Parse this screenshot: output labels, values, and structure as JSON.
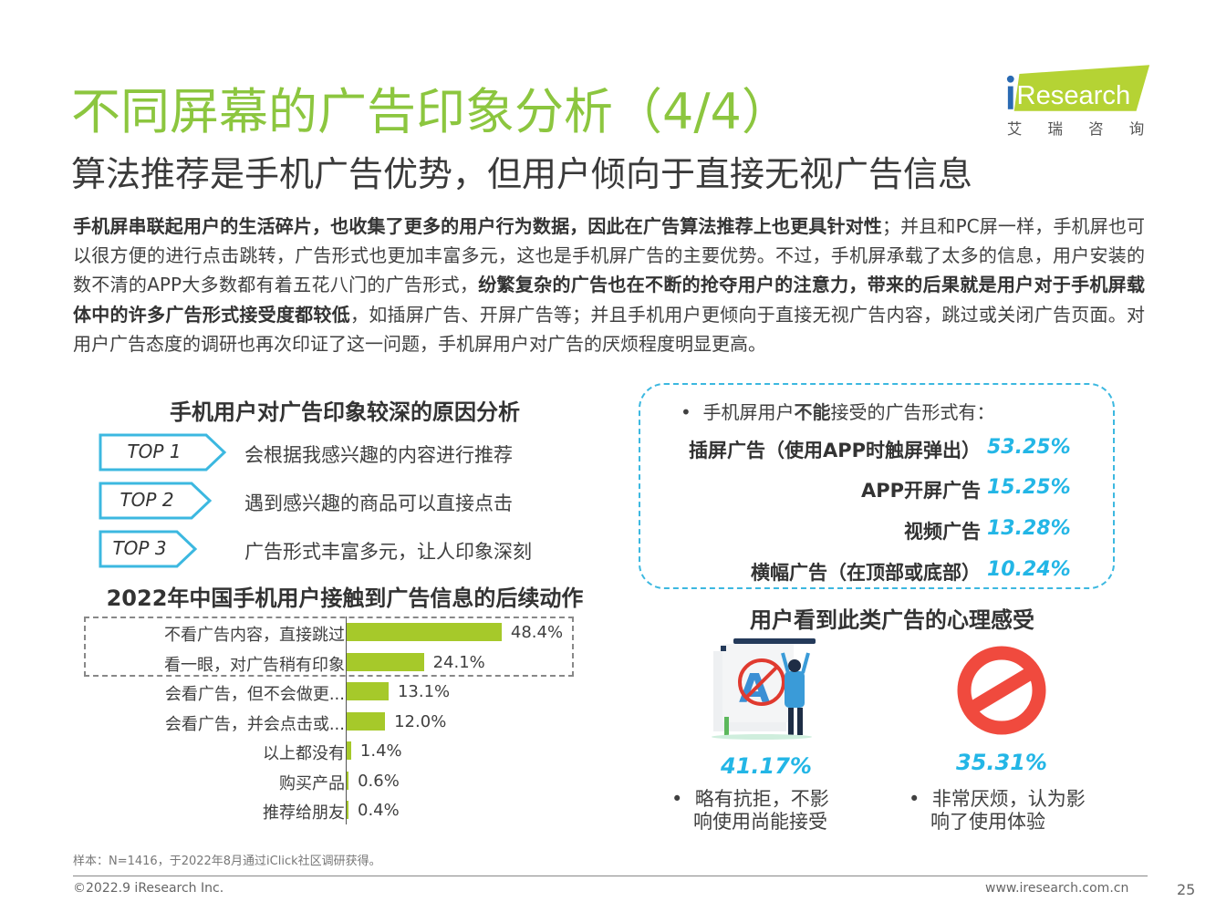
{
  "header": {
    "title": "不同屏幕的广告印象分析（4/4）",
    "subtitle": "算法推荐是手机广告优势，但用户倾向于直接无视广告信息",
    "logo_text": "iResearch",
    "logo_cn": "艾 瑞 咨 询"
  },
  "body": {
    "p1_bold": "手机屏串联起用户的生活碎片，也收集了更多的用户行为数据，因此在广告算法推荐上也更具针对性",
    "p1": "；并且和PC屏一样，手机屏也可以很方便的进行点击跳转，广告形式也更加丰富多元，这也是手机屏广告的主要优势。不过，手机屏承载了太多的信息，用户安装的数不清的APP大多数都有着五花八门的广告形式，",
    "p2_bold": "纷繁复杂的广告也在不断的抢夺用户的注意力，带来的后果就是用户对于手机屏载体中的许多广告形式接受度都较低",
    "p2": "，如插屏广告、开屏广告等；并且手机用户更倾向于直接无视广告内容，跳过或关闭广告页面。对用户广告态度的调研也再次印证了这一问题，手机屏用户对广告的厌烦程度明显更高。"
  },
  "reasons": {
    "title": "手机用户对广告印象较深的原因分析",
    "items": [
      {
        "rank": "TOP 1",
        "text": "会根据我感兴趣的内容进行推荐"
      },
      {
        "rank": "TOP 2",
        "text": "遇到感兴趣的商品可以直接点击"
      },
      {
        "rank": "TOP 3",
        "text": "广告形式丰富多元，让人印象深刻"
      }
    ]
  },
  "unacceptable": {
    "intro_pre": "手机屏用户",
    "intro_bold": "不能",
    "intro_post": "接受的广告形式有：",
    "items": [
      {
        "label": "插屏广告（使用APP时触屏弹出）",
        "value": "53.25%"
      },
      {
        "label": "APP开屏广告",
        "value": "15.25%"
      },
      {
        "label": "视频广告",
        "value": "13.28%"
      },
      {
        "label": "横幅广告（在顶部或底部）",
        "value": "10.24%"
      }
    ]
  },
  "chart_data": {
    "type": "bar",
    "orientation": "horizontal",
    "title": "2022年中国手机用户接触到广告信息的后续动作",
    "categories": [
      "不看广告内容，直接跳过",
      "看一眼，对广告稍有印象",
      "会看广告，但不会做更...",
      "会看广告，并会点击或...",
      "以上都没有",
      "购买产品",
      "推荐给朋友"
    ],
    "values": [
      48.4,
      24.1,
      13.1,
      12.0,
      1.4,
      0.6,
      0.4
    ],
    "value_labels": [
      "48.4%",
      "24.1%",
      "13.1%",
      "12.0%",
      "1.4%",
      "0.6%",
      "0.4%"
    ],
    "unit": "%",
    "color": "#a6c92a",
    "highlighted": [
      0,
      1
    ]
  },
  "feelings": {
    "title": "用户看到此类广告的心理感受",
    "items": [
      {
        "value": "41.17%",
        "line1": "略有抗拒，不影",
        "line2": "响使用尚能接受",
        "icon": "person-blocking-ad-icon"
      },
      {
        "value": "35.31%",
        "line1": "非常厌烦，认为影",
        "line2": "响了使用体验",
        "icon": "prohibited-icon"
      }
    ]
  },
  "footer": {
    "note": "样本：N=1416，于2022年8月通过iClick社区调研获得。",
    "copyright": "©2022.9 iResearch Inc.",
    "url": "www.iresearch.com.cn",
    "page": "25"
  },
  "colors": {
    "title_green": "#8cc63f",
    "accent_cyan": "#23b6e6",
    "bar_green": "#a6c92a",
    "stop_red": "#f04a3e"
  }
}
